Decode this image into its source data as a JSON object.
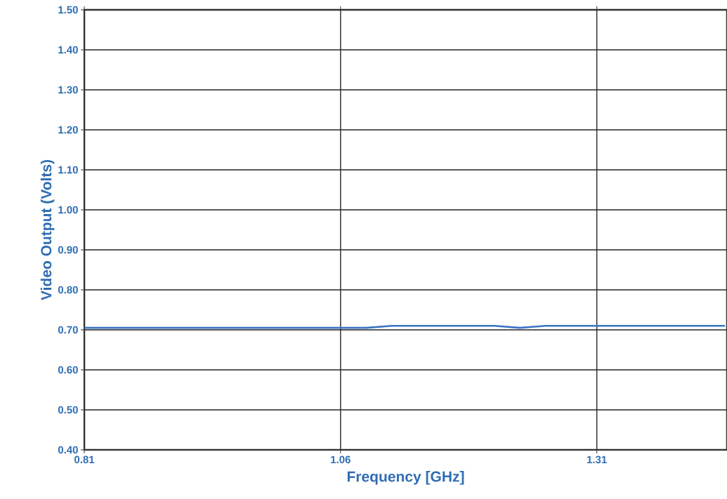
{
  "chart_data": {
    "type": "line",
    "xlabel": "Frequency [GHz]",
    "ylabel": "Video Output (Volts)",
    "x": [
      0.81,
      0.835,
      0.86,
      0.885,
      0.91,
      0.935,
      0.96,
      0.985,
      1.01,
      1.035,
      1.06,
      1.085,
      1.11,
      1.135,
      1.16,
      1.185,
      1.21,
      1.235,
      1.26,
      1.285,
      1.31,
      1.335,
      1.36,
      1.385,
      1.41,
      1.435
    ],
    "series": [
      {
        "color": "#3a74c4",
        "values": [
          0.705,
          0.705,
          0.705,
          0.705,
          0.705,
          0.705,
          0.705,
          0.705,
          0.705,
          0.705,
          0.705,
          0.705,
          0.71,
          0.71,
          0.71,
          0.71,
          0.71,
          0.705,
          0.71,
          0.71,
          0.71,
          0.71,
          0.71,
          0.71,
          0.71,
          0.71
        ]
      }
    ],
    "xlim": [
      0.81,
      1.437
    ],
    "ylim": [
      0.4,
      1.5
    ],
    "xticks": [
      0.81,
      1.06,
      1.31
    ],
    "yticks": [
      {
        "value": 0.4,
        "label": "0.40"
      },
      {
        "value": 0.5,
        "label": "0.50"
      },
      {
        "value": 0.6,
        "label": "0.60"
      },
      {
        "value": 0.7,
        "label": "0.70"
      },
      {
        "value": 0.8,
        "label": "0.80"
      },
      {
        "value": 0.9,
        "label": "0.90"
      },
      {
        "value": 1.0,
        "label": "1.00"
      },
      {
        "value": 1.1,
        "label": "1.10"
      },
      {
        "value": 1.2,
        "label": "1.20"
      },
      {
        "value": 1.3,
        "label": "1.30"
      },
      {
        "value": 1.4,
        "label": "1.40"
      },
      {
        "value": 1.5,
        "label": "1.50"
      }
    ],
    "grid": true,
    "marker": "none",
    "line_style": "solid"
  }
}
